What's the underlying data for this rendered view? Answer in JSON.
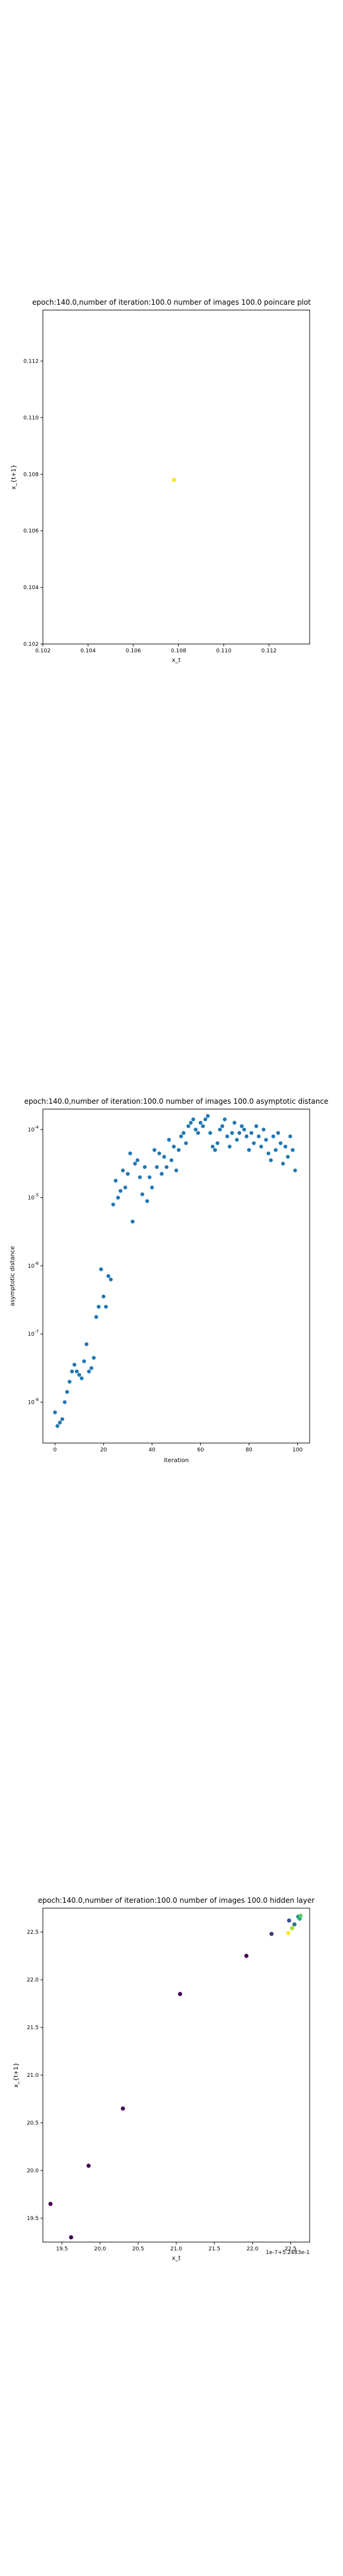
{
  "chart_data": [
    {
      "type": "scatter",
      "title": "epoch:140.0,number of iteration:100.0 number of images 100.0 poincare plot",
      "xlabel": "x_t",
      "ylabel": "x_{t+1}",
      "xlim": [
        0.102,
        0.1138
      ],
      "ylim": [
        0.102,
        0.1138
      ],
      "xticks": [
        0.102,
        0.104,
        0.106,
        0.108,
        0.11,
        0.112
      ],
      "yticks": [
        0.102,
        0.104,
        0.106,
        0.108,
        0.11,
        0.112
      ],
      "tick_labels": [
        "0.102",
        "0.104",
        "0.106",
        "0.108",
        "0.110",
        "0.112"
      ],
      "grid": false,
      "point_color": "#fde725",
      "points": [
        {
          "x": 0.1078,
          "y": 0.1078
        }
      ]
    },
    {
      "type": "scatter",
      "title": "epoch:140.0,number of iteration:100.0  number of images 100.0 asymptotic distance",
      "xlabel": "iteration",
      "ylabel": "asymptotic distance",
      "xlim": [
        -5,
        105
      ],
      "ylim_log10": [
        -8.6,
        -3.7
      ],
      "xticks": [
        0,
        20,
        40,
        60,
        80,
        100
      ],
      "yticks_exp": [
        -8,
        -7,
        -6,
        -5,
        -4
      ],
      "tick_labels": [
        "10",
        "10",
        "10",
        "10",
        "10"
      ],
      "tick_exponents": [
        "-8",
        "-7",
        "-6",
        "-5",
        "-4"
      ],
      "log_y": true,
      "grid": false,
      "point_color": "#1f77b4",
      "log10_values": [
        -8.15,
        -8.35,
        -8.3,
        -8.25,
        -8.0,
        -7.85,
        -7.7,
        -7.55,
        -7.45,
        -7.55,
        -7.6,
        -7.65,
        -7.4,
        -7.15,
        -7.55,
        -7.5,
        -7.35,
        -6.75,
        -6.6,
        -6.05,
        -6.45,
        -6.6,
        -6.15,
        -6.2,
        -5.1,
        -4.75,
        -5.0,
        -4.9,
        -4.6,
        -4.85,
        -4.65,
        -4.35,
        -5.35,
        -4.5,
        -4.45,
        -4.7,
        -4.95,
        -4.55,
        -5.05,
        -4.7,
        -4.85,
        -4.3,
        -4.55,
        -4.35,
        -4.65,
        -4.4,
        -4.55,
        -4.15,
        -4.45,
        -4.25,
        -4.6,
        -4.3,
        -4.1,
        -4.05,
        -4.2,
        -3.95,
        -3.9,
        -3.85,
        -4.0,
        -4.05,
        -3.9,
        -3.95,
        -3.85,
        -3.8,
        -4.05,
        -4.25,
        -4.3,
        -4.2,
        -4.0,
        -3.95,
        -3.85,
        -4.1,
        -4.25,
        -4.05,
        -3.9,
        -4.15,
        -4.05,
        -3.95,
        -4.0,
        -4.1,
        -4.3,
        -4.05,
        -4.2,
        -3.95,
        -4.1,
        -4.25,
        -4.0,
        -4.15,
        -4.35,
        -4.45,
        -4.1,
        -4.3,
        -4.05,
        -4.2,
        -4.5,
        -4.25,
        -4.4,
        -4.1,
        -4.3,
        -4.6
      ]
    },
    {
      "type": "scatter",
      "title": "epoch:140.0,number of iteration:100.0  number of images 100.0 hidden layer",
      "xlabel": "x_t",
      "ylabel": "x_{t+1}",
      "offset_text": "1e-7+5.2483e-1",
      "xlim": [
        19.25,
        22.75
      ],
      "ylim": [
        19.25,
        22.75
      ],
      "xticks": [
        19.5,
        20.0,
        20.5,
        21.0,
        21.5,
        22.0,
        22.5
      ],
      "yticks": [
        19.5,
        20.0,
        20.5,
        21.0,
        21.5,
        22.0,
        22.5
      ],
      "tick_labels": [
        "19.5",
        "20.0",
        "20.5",
        "21.0",
        "21.5",
        "22.0",
        "22.5"
      ],
      "grid": false,
      "colormap": "viridis",
      "points": [
        {
          "x": 19.35,
          "y": 19.65,
          "color": "#440154"
        },
        {
          "x": 19.62,
          "y": 19.3,
          "color": "#440154"
        },
        {
          "x": 19.85,
          "y": 20.05,
          "color": "#440154"
        },
        {
          "x": 20.3,
          "y": 20.65,
          "color": "#440154"
        },
        {
          "x": 21.05,
          "y": 21.85,
          "color": "#440154"
        },
        {
          "x": 21.92,
          "y": 22.25,
          "color": "#440154"
        },
        {
          "x": 22.25,
          "y": 22.48,
          "color": "#46327e"
        },
        {
          "x": 22.48,
          "y": 22.62,
          "color": "#3b528b"
        },
        {
          "x": 22.55,
          "y": 22.58,
          "color": "#2c728e"
        },
        {
          "x": 22.6,
          "y": 22.66,
          "color": "#21918c"
        },
        {
          "x": 22.62,
          "y": 22.64,
          "color": "#28ae80"
        },
        {
          "x": 22.63,
          "y": 22.67,
          "color": "#5ec962"
        },
        {
          "x": 22.52,
          "y": 22.54,
          "color": "#addc30"
        },
        {
          "x": 22.47,
          "y": 22.49,
          "color": "#fde725"
        }
      ]
    }
  ]
}
